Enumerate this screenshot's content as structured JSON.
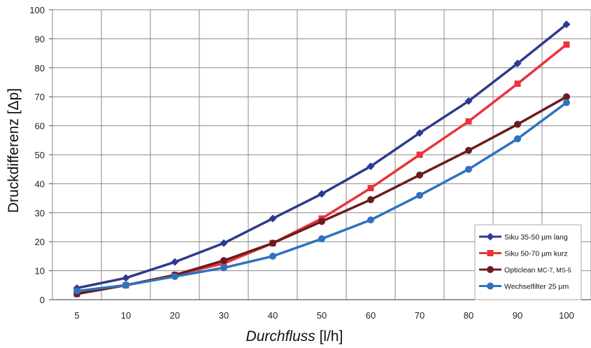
{
  "chart_data": {
    "type": "line",
    "x": [
      "5",
      "10",
      "20",
      "30",
      "40",
      "50",
      "60",
      "70",
      "80",
      "90",
      "100"
    ],
    "xlabel_italic": "Durchfluss",
    "xlabel_unit": " [l/h]",
    "ylabel": "Druckdifferenz [Δp]",
    "ylim": [
      0,
      100
    ],
    "yticks": [
      "0",
      "10",
      "20",
      "30",
      "40",
      "50",
      "60",
      "70",
      "80",
      "90",
      "100"
    ],
    "grid": true,
    "legend_position": "bottom-right",
    "series": [
      {
        "name_main": "Siku 35-50 µm lang",
        "name_small": "",
        "color": "#2e3a8c",
        "marker": "diamond",
        "values": [
          4,
          7.5,
          13,
          19.5,
          28,
          36.5,
          46,
          57.5,
          68.5,
          81.5,
          95
        ]
      },
      {
        "name_main": "Siku 50-70 µm kurz",
        "name_small": "",
        "color": "#e8343c",
        "marker": "square",
        "values": [
          2,
          5,
          8.5,
          12.5,
          19.5,
          28,
          38.5,
          50,
          61.5,
          74.5,
          88
        ]
      },
      {
        "name_main": "Opticlean ",
        "name_small": "MC-7, MS-5",
        "color": "#6b1c1c",
        "marker": "circle",
        "values": [
          2,
          5,
          8.5,
          13.5,
          19.5,
          27,
          34.5,
          43,
          51.5,
          60.5,
          70
        ]
      },
      {
        "name_main": "Wechselfilter 25 µm",
        "name_small": "",
        "color": "#2e72c0",
        "marker": "circle",
        "values": [
          3,
          5,
          8,
          11,
          15,
          21,
          27.5,
          36,
          45,
          55.5,
          68
        ]
      }
    ]
  }
}
